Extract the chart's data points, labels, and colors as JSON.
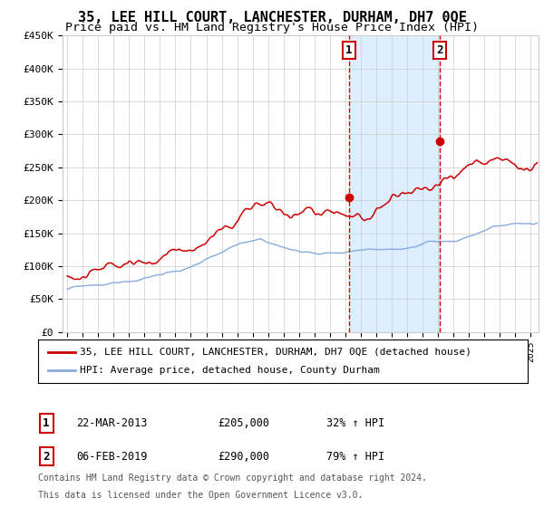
{
  "title": "35, LEE HILL COURT, LANCHESTER, DURHAM, DH7 0QE",
  "subtitle": "Price paid vs. HM Land Registry's House Price Index (HPI)",
  "ylim": [
    0,
    450000
  ],
  "yticks": [
    0,
    50000,
    100000,
    150000,
    200000,
    250000,
    300000,
    350000,
    400000,
    450000
  ],
  "ytick_labels": [
    "£0",
    "£50K",
    "£100K",
    "£150K",
    "£200K",
    "£250K",
    "£300K",
    "£350K",
    "£400K",
    "£450K"
  ],
  "xlim_start": 1994.7,
  "xlim_end": 2025.5,
  "transaction1": {
    "date_num": 2013.22,
    "price": 205000,
    "label": "1",
    "text": "22-MAR-2013",
    "price_text": "£205,000",
    "hpi_text": "32% ↑ HPI"
  },
  "transaction2": {
    "date_num": 2019.09,
    "price": 290000,
    "label": "2",
    "text": "06-FEB-2019",
    "price_text": "£290,000",
    "hpi_text": "79% ↑ HPI"
  },
  "legend1": "35, LEE HILL COURT, LANCHESTER, DURHAM, DH7 0QE (detached house)",
  "legend2": "HPI: Average price, detached house, County Durham",
  "footnote1": "Contains HM Land Registry data © Crown copyright and database right 2024.",
  "footnote2": "This data is licensed under the Open Government Licence v3.0.",
  "property_color": "#cc0000",
  "hpi_color": "#88aadd",
  "bg_highlight_color": "#ddeeff",
  "vline_color": "#cc0000",
  "grid_color": "#cccccc",
  "title_fontsize": 11,
  "subtitle_fontsize": 9.5,
  "tick_fontsize": 8,
  "legend_fontsize": 8,
  "table_fontsize": 8.5
}
